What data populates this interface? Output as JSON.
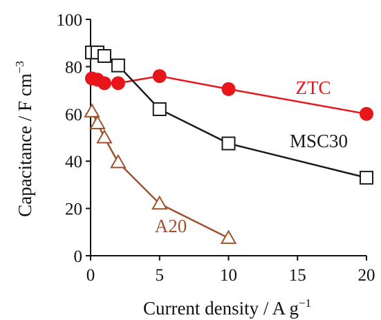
{
  "chart_data": {
    "type": "line",
    "xlabel": "Current density / A g",
    "xlabel_sup": "−1",
    "ylabel": "Capacitance / F cm",
    "ylabel_sup": "−3",
    "xlim": [
      0,
      20
    ],
    "ylim": [
      0,
      100
    ],
    "xticks": [
      0,
      5,
      10,
      15,
      20
    ],
    "yticks": [
      0,
      20,
      40,
      60,
      80,
      100
    ],
    "grid": false,
    "legend": "inline-labels",
    "series": [
      {
        "name": "ZTC",
        "color": "#e8161b",
        "marker": "circle",
        "points": [
          [
            0.1,
            75
          ],
          [
            0.5,
            74.5
          ],
          [
            1.0,
            73
          ],
          [
            2.0,
            73
          ],
          [
            5.0,
            76
          ],
          [
            10.0,
            70.5
          ],
          [
            20.0,
            60
          ]
        ]
      },
      {
        "name": "MSC30",
        "color": "#1a1a1a",
        "marker": "square",
        "points": [
          [
            0.1,
            86
          ],
          [
            0.5,
            86
          ],
          [
            1.0,
            84.5
          ],
          [
            2.0,
            80.5
          ],
          [
            5.0,
            62
          ],
          [
            10.0,
            47.5
          ],
          [
            20.0,
            33
          ]
        ]
      },
      {
        "name": "A20",
        "color": "#a0522d",
        "marker": "triangle",
        "points": [
          [
            0.1,
            61
          ],
          [
            0.5,
            56
          ],
          [
            1.0,
            50
          ],
          [
            2.0,
            39.5
          ],
          [
            5.0,
            22
          ],
          [
            10.0,
            7.5
          ]
        ]
      }
    ]
  }
}
